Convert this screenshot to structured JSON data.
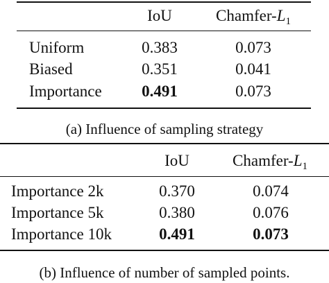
{
  "table_a": {
    "headers": {
      "iou": "IoU",
      "chamfer_prefix": "Chamfer-",
      "chamfer_var": "L",
      "chamfer_sub": "1"
    },
    "rows": [
      {
        "label": "Uniform",
        "iou": "0.383",
        "chamfer": "0.073"
      },
      {
        "label": "Biased",
        "iou": "0.351",
        "chamfer": "0.041"
      },
      {
        "label": "Importance",
        "iou": "0.491",
        "chamfer": "0.073"
      }
    ],
    "caption": "(a) Influence of sampling strategy"
  },
  "table_b": {
    "headers": {
      "iou": "IoU",
      "chamfer_prefix": "Chamfer-",
      "chamfer_var": "L",
      "chamfer_sub": "1"
    },
    "rows": [
      {
        "label": "Importance 2k",
        "iou": "0.370",
        "chamfer": "0.074"
      },
      {
        "label": "Importance 5k",
        "iou": "0.380",
        "chamfer": "0.076"
      },
      {
        "label": "Importance 10k",
        "iou": "0.491",
        "chamfer": "0.073"
      }
    ],
    "caption": "(b) Influence of number of sampled points."
  }
}
